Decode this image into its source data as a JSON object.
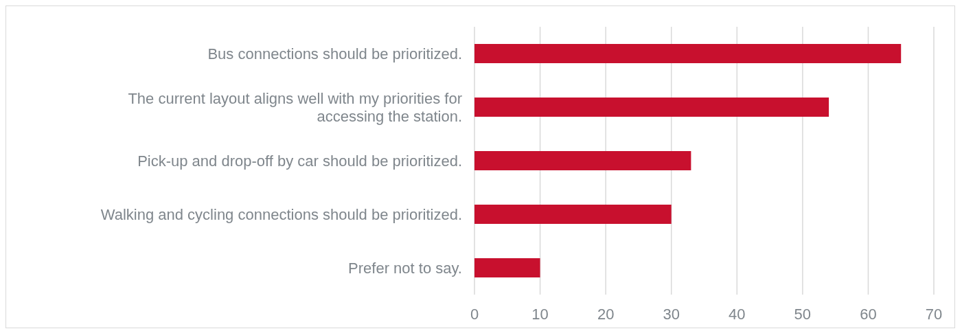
{
  "chart_data": {
    "type": "bar",
    "orientation": "horizontal",
    "categories": [
      "Bus connections should be prioritized.",
      "The current layout aligns well with my priorities for accessing the station.",
      "Pick-up and drop-off by car should be prioritized.",
      "Walking and cycling connections should be prioritized.",
      "Prefer not to say."
    ],
    "values": [
      65,
      54,
      33,
      30,
      10
    ],
    "color": "#c8102e",
    "xlim": [
      0,
      70
    ],
    "xticks": [
      0,
      10,
      20,
      30,
      40,
      50,
      60,
      70
    ],
    "grid": "x"
  }
}
